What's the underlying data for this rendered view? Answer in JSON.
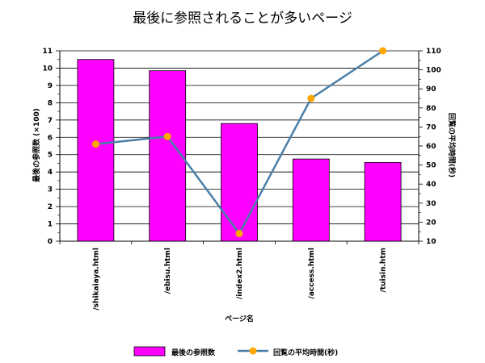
{
  "chart_data": {
    "type": "bar",
    "title": "最後に参照されることが多いページ",
    "xlabel": "ページ名",
    "categories": [
      "/shikaiaya.html",
      "/ebisu.html",
      "/index2.html",
      "/access.html",
      "/tuisin.htm"
    ],
    "series": [
      {
        "name": "最後の参照数",
        "type": "bar",
        "axis": "left",
        "color": "#ff00ff",
        "values": [
          10.5,
          9.85,
          6.8,
          4.75,
          4.55
        ]
      },
      {
        "name": "回覧の平均時間(秒)",
        "type": "line",
        "axis": "right",
        "color": "#4a7fa8",
        "marker_color": "#ffa500",
        "values": [
          61,
          65,
          14,
          85,
          110
        ]
      }
    ],
    "y_left": {
      "label": "最後の参照数 (×100)",
      "lim": [
        0,
        11
      ],
      "ticks": [
        0,
        1,
        2,
        3,
        4,
        5,
        6,
        7,
        8,
        9,
        10,
        11
      ]
    },
    "y_right": {
      "label": "回覧の平均時間(秒)",
      "lim": [
        10,
        110
      ],
      "ticks": [
        10,
        20,
        30,
        40,
        50,
        60,
        70,
        80,
        90,
        100,
        110
      ]
    },
    "grid": true,
    "legend_position": "bottom"
  }
}
